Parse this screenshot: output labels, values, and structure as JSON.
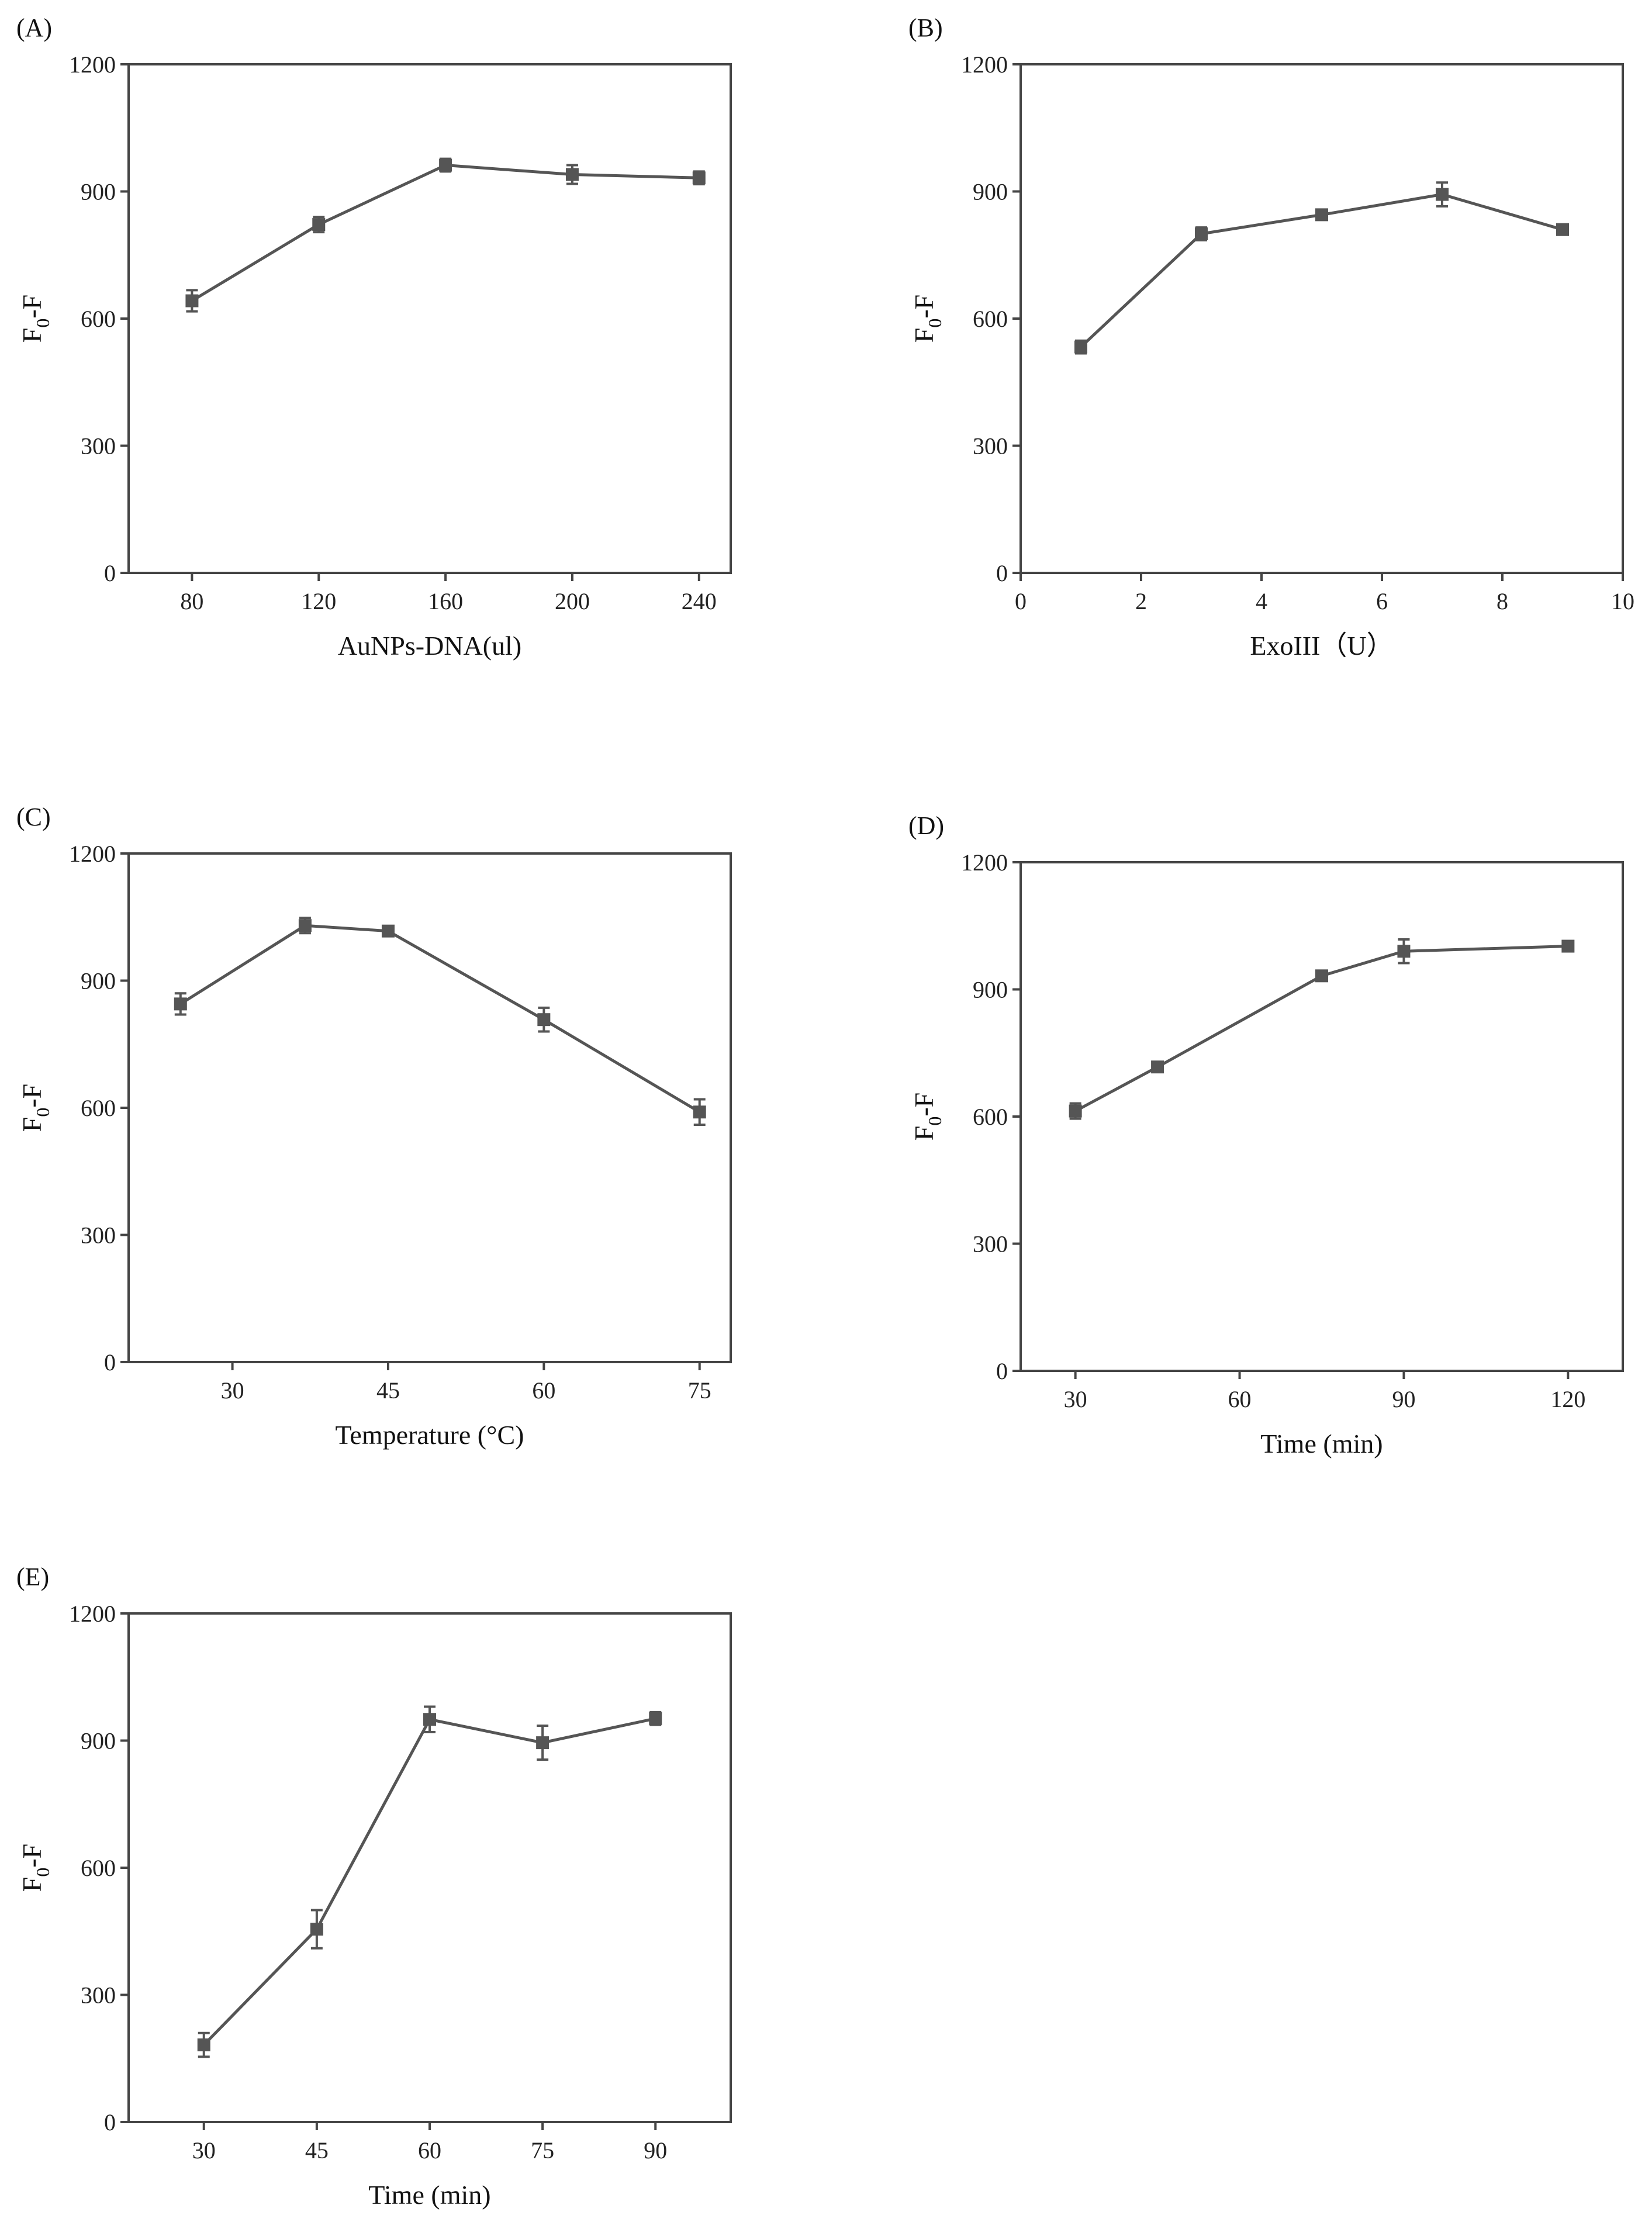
{
  "chart_data": [
    {
      "type": "line",
      "panel_label": "(A)",
      "xlabel": "AuNPs-DNA(ul)",
      "ylabel_main": "F",
      "ylabel_sub": "0",
      "ylabel_tail": "-F",
      "xlim": [
        60,
        250
      ],
      "ylim": [
        0,
        1200
      ],
      "x_ticks": [
        80,
        120,
        160,
        200,
        240
      ],
      "y_ticks": [
        0,
        300,
        600,
        900,
        1200
      ],
      "x": [
        80,
        120,
        160,
        200,
        240
      ],
      "y": [
        642,
        822,
        962,
        940,
        932
      ],
      "y_err": [
        25,
        18,
        15,
        22,
        15
      ]
    },
    {
      "type": "line",
      "panel_label": "(B)",
      "xlabel": "ExoIII（U）",
      "ylabel_main": "F",
      "ylabel_sub": "0",
      "ylabel_tail": "-F",
      "xlim": [
        0,
        10
      ],
      "ylim": [
        0,
        1200
      ],
      "x_ticks": [
        0,
        2,
        4,
        6,
        8,
        10
      ],
      "y_ticks": [
        0,
        300,
        600,
        900,
        1200
      ],
      "x": [
        1,
        3,
        5,
        7,
        9
      ],
      "y": [
        533,
        800,
        845,
        893,
        810
      ],
      "y_err": [
        15,
        15,
        10,
        28,
        12
      ]
    },
    {
      "type": "line",
      "panel_label": "(C)",
      "xlabel": "Temperature (°C)",
      "ylabel_main": "F",
      "ylabel_sub": "0",
      "ylabel_tail": "-F",
      "xlim": [
        20,
        78
      ],
      "ylim": [
        0,
        1200
      ],
      "x_ticks": [
        30,
        45,
        60,
        75
      ],
      "y_ticks": [
        0,
        300,
        600,
        900,
        1200
      ],
      "x": [
        25,
        37,
        45,
        60,
        75
      ],
      "y": [
        845,
        1030,
        1017,
        808,
        590
      ],
      "y_err": [
        25,
        18,
        12,
        28,
        30
      ]
    },
    {
      "type": "line",
      "panel_label": "(D)",
      "xlabel": "Time (min)",
      "ylabel_main": "F",
      "ylabel_sub": "0",
      "ylabel_tail": "-F",
      "xlim": [
        20,
        130
      ],
      "ylim": [
        0,
        1200
      ],
      "x_ticks": [
        30,
        60,
        90,
        120
      ],
      "y_ticks": [
        0,
        300,
        600,
        900,
        1200
      ],
      "x": [
        30,
        45,
        75,
        90,
        120
      ],
      "y": [
        613,
        717,
        932,
        990,
        1002
      ],
      "y_err": [
        18,
        8,
        10,
        28,
        10
      ]
    },
    {
      "type": "line",
      "panel_label": "(E)",
      "xlabel": "Time (min)",
      "ylabel_main": "F",
      "ylabel_sub": "0",
      "ylabel_tail": "-F",
      "xlim": [
        20,
        100
      ],
      "ylim": [
        0,
        1200
      ],
      "x_ticks": [
        30,
        45,
        60,
        75,
        90
      ],
      "y_ticks": [
        0,
        300,
        600,
        900,
        1200
      ],
      "x": [
        30,
        45,
        60,
        75,
        90
      ],
      "y": [
        182,
        455,
        950,
        895,
        952
      ],
      "y_err": [
        28,
        45,
        30,
        40,
        15
      ]
    }
  ]
}
